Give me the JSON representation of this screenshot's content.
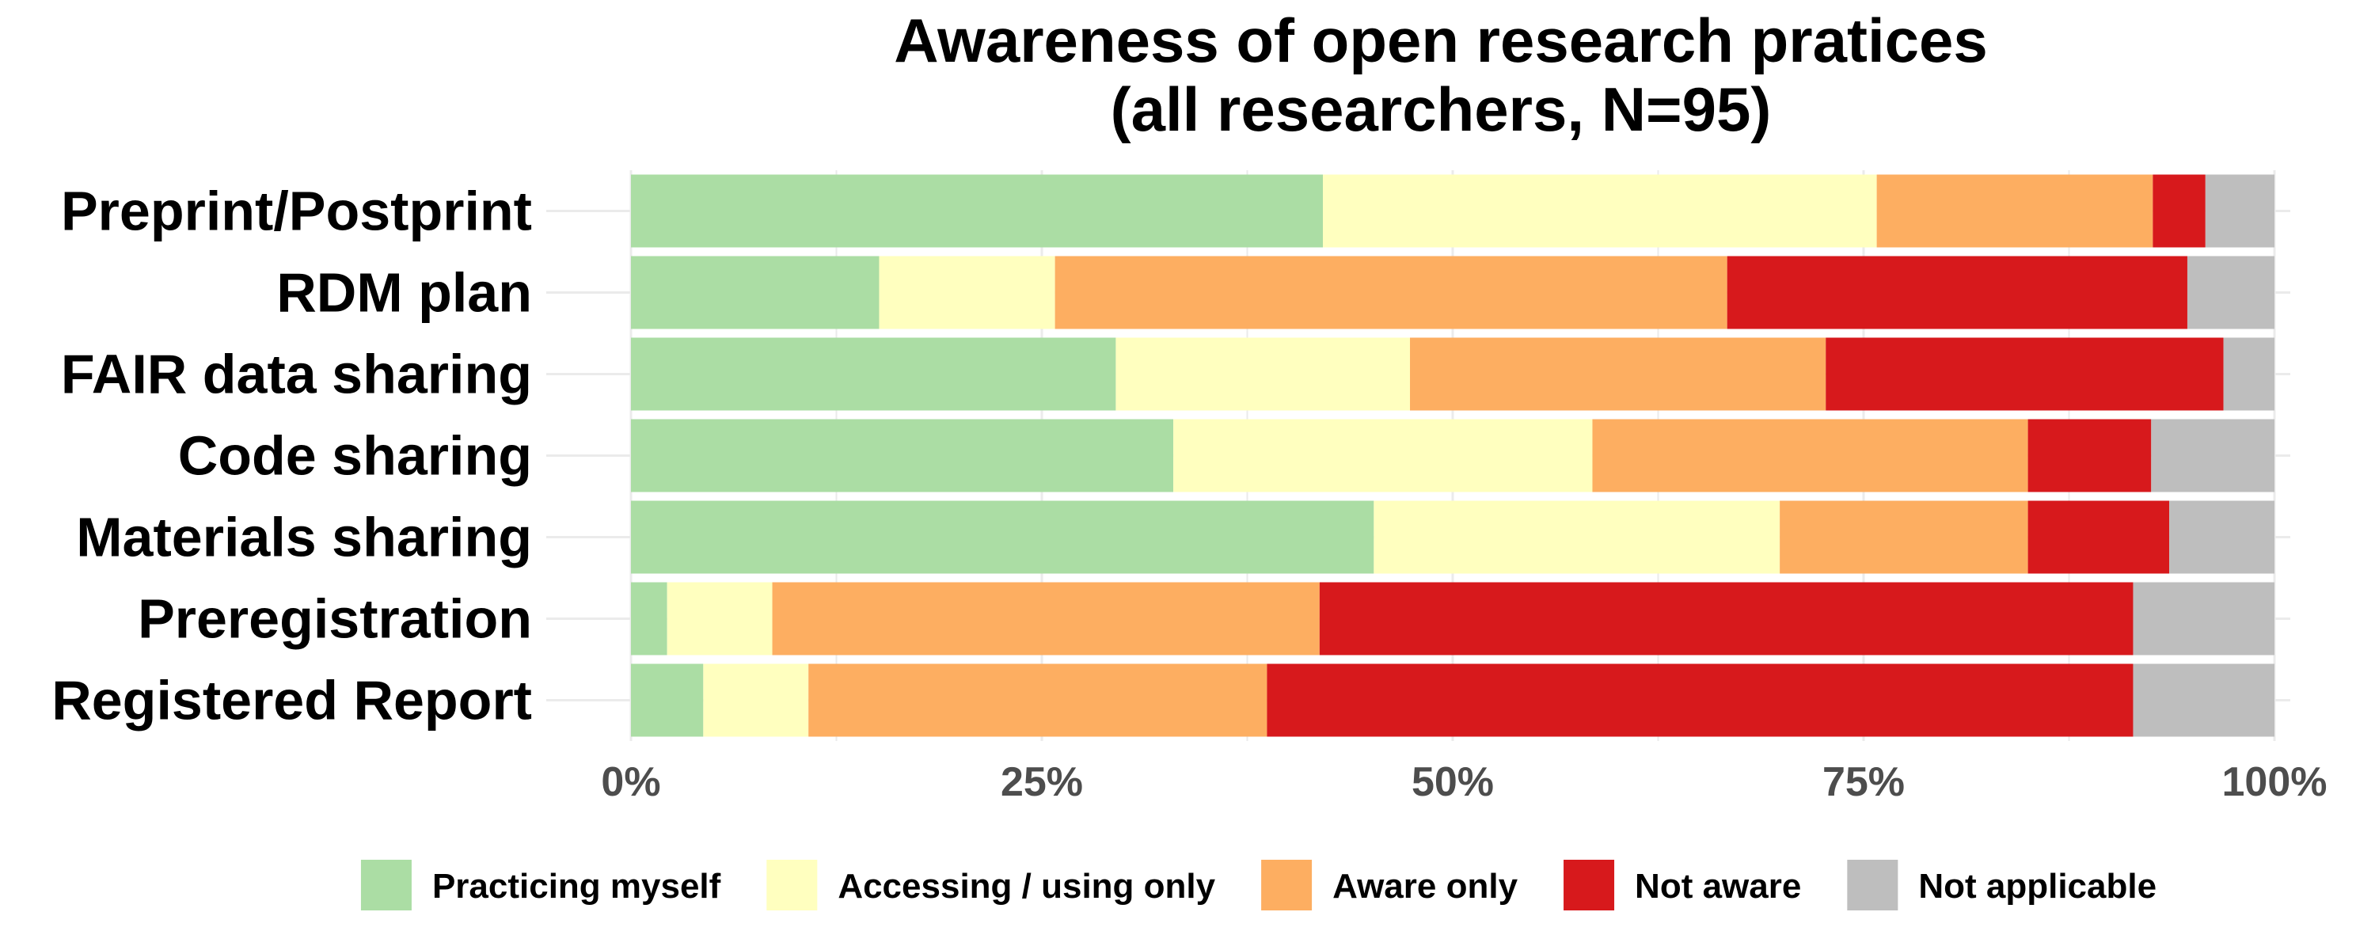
{
  "chart_data": {
    "type": "bar",
    "orientation": "horizontal",
    "stacked": true,
    "percent_axis": true,
    "title": "Awareness of open research pratices",
    "subtitle": "(all researchers, N=95)",
    "categories": [
      "Preprint/Postprint",
      "RDM plan",
      "FAIR data sharing",
      "Code sharing",
      "Materials sharing",
      "Preregistration",
      "Registered Report"
    ],
    "series": [
      {
        "name": "Practicing myself",
        "color": "#ABDDA4",
        "values": [
          42.1,
          15.1,
          29.5,
          33.0,
          45.2,
          2.2,
          4.4
        ]
      },
      {
        "name": "Accessing / using only",
        "color": "#FFFFBF",
        "values": [
          33.7,
          10.7,
          17.9,
          25.5,
          24.7,
          6.4,
          6.4
        ]
      },
      {
        "name": "Aware only",
        "color": "#FDAE61",
        "values": [
          16.8,
          40.9,
          25.3,
          26.5,
          15.1,
          33.3,
          27.9
        ]
      },
      {
        "name": "Not aware",
        "color": "#D7191C",
        "values": [
          3.2,
          28.0,
          24.2,
          7.5,
          8.6,
          49.5,
          52.7
        ]
      },
      {
        "name": "Not applicable",
        "color": "#BEBEBE",
        "values": [
          4.2,
          5.3,
          3.1,
          7.5,
          6.4,
          8.6,
          8.6
        ]
      }
    ],
    "xlim": [
      0,
      100
    ],
    "xticks": [
      "0%",
      "25%",
      "50%",
      "75%",
      "100%"
    ],
    "xlabel": "",
    "ylabel": "",
    "grid": true,
    "legend_position": "bottom"
  }
}
